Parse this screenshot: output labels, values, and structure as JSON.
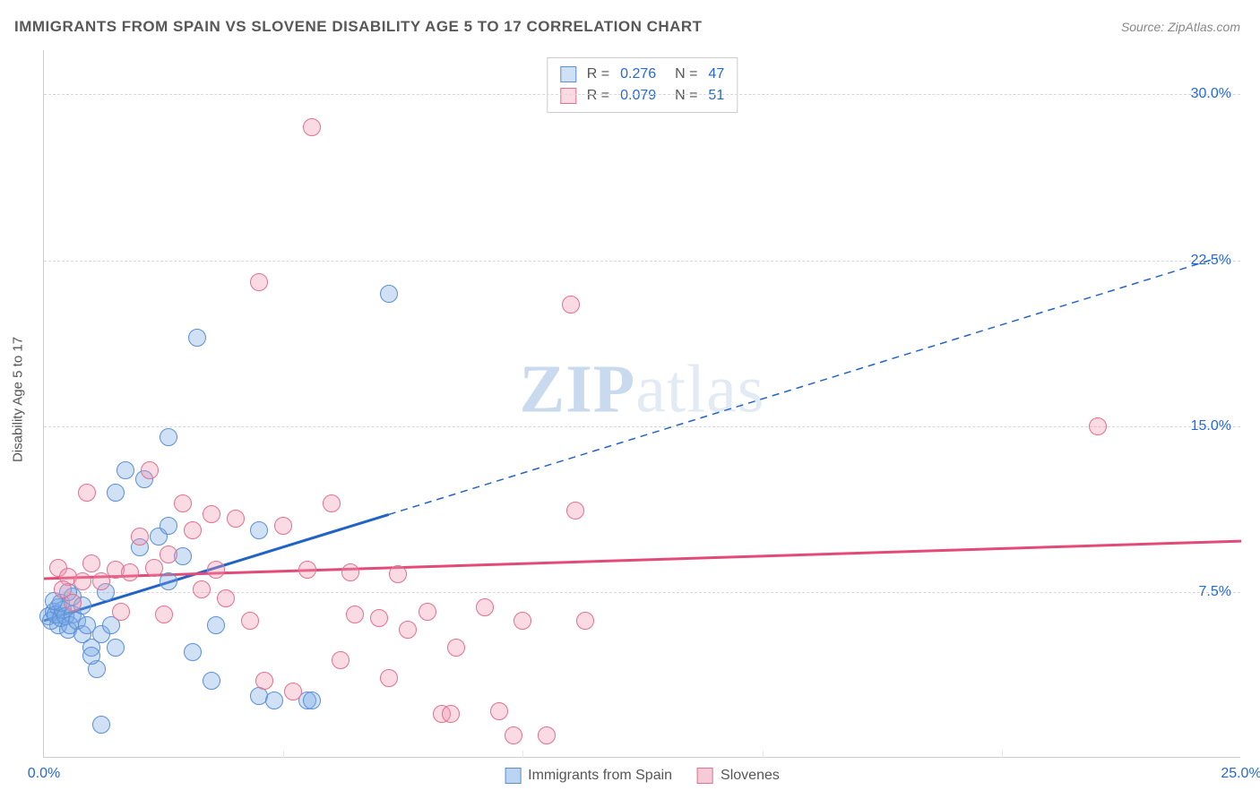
{
  "title": "IMMIGRANTS FROM SPAIN VS SLOVENE DISABILITY AGE 5 TO 17 CORRELATION CHART",
  "source_label": "Source: ZipAtlas.com",
  "ylabel": "Disability Age 5 to 17",
  "watermark_a": "ZIP",
  "watermark_b": "atlas",
  "chart": {
    "type": "scatter",
    "xlim": [
      0,
      25
    ],
    "ylim": [
      0,
      32
    ],
    "xticks": [
      {
        "v": 0,
        "label": "0.0%"
      },
      {
        "v": 25,
        "label": "25.0%"
      }
    ],
    "xtick_marks": [
      5,
      10,
      15,
      20
    ],
    "yticks": [
      {
        "v": 7.5,
        "label": "7.5%"
      },
      {
        "v": 15,
        "label": "15.0%"
      },
      {
        "v": 22.5,
        "label": "22.5%"
      },
      {
        "v": 30,
        "label": "30.0%"
      }
    ],
    "grid_color": "#d8d8d8",
    "background_color": "#ffffff",
    "marker_radius": 10,
    "series": [
      {
        "name": "Immigrants from Spain",
        "fill": "rgba(120,170,230,0.35)",
        "stroke": "#5a8fd6",
        "R": "0.276",
        "N": "47",
        "trend": {
          "x1": 0,
          "y1": 6.2,
          "x2": 7.2,
          "y2": 11.0,
          "x2_ext": 24.5,
          "y2_ext": 22.6,
          "color": "#2263c8",
          "width": 3
        },
        "points": [
          [
            0.1,
            6.4
          ],
          [
            0.2,
            6.6
          ],
          [
            0.3,
            6.0
          ],
          [
            0.3,
            6.8
          ],
          [
            0.15,
            6.2
          ],
          [
            0.25,
            6.5
          ],
          [
            0.35,
            6.3
          ],
          [
            0.4,
            6.7
          ],
          [
            0.35,
            7.0
          ],
          [
            0.2,
            7.1
          ],
          [
            0.5,
            5.8
          ],
          [
            0.45,
            6.4
          ],
          [
            0.6,
            6.5
          ],
          [
            0.55,
            6.0
          ],
          [
            0.6,
            7.3
          ],
          [
            0.7,
            6.2
          ],
          [
            0.8,
            5.6
          ],
          [
            0.8,
            6.9
          ],
          [
            0.9,
            6.0
          ],
          [
            0.5,
            7.5
          ],
          [
            1.0,
            5.0
          ],
          [
            1.1,
            4.0
          ],
          [
            1.0,
            4.6
          ],
          [
            1.2,
            5.6
          ],
          [
            1.3,
            7.5
          ],
          [
            1.5,
            5.0
          ],
          [
            1.4,
            6.0
          ],
          [
            1.5,
            12.0
          ],
          [
            1.7,
            13.0
          ],
          [
            1.2,
            1.5
          ],
          [
            2.0,
            9.5
          ],
          [
            2.1,
            12.6
          ],
          [
            2.4,
            10.0
          ],
          [
            2.6,
            10.5
          ],
          [
            2.6,
            8.0
          ],
          [
            2.6,
            14.5
          ],
          [
            2.9,
            9.1
          ],
          [
            3.1,
            4.8
          ],
          [
            3.2,
            19.0
          ],
          [
            3.5,
            3.5
          ],
          [
            3.6,
            6.0
          ],
          [
            4.5,
            2.8
          ],
          [
            4.8,
            2.6
          ],
          [
            5.5,
            2.6
          ],
          [
            5.6,
            2.6
          ],
          [
            7.2,
            21.0
          ],
          [
            4.5,
            10.3
          ]
        ]
      },
      {
        "name": "Slovenes",
        "fill": "rgba(240,150,175,0.35)",
        "stroke": "#e3708f",
        "R": "0.079",
        "N": "51",
        "trend": {
          "x1": 0,
          "y1": 8.1,
          "x2": 25,
          "y2": 9.8,
          "color": "#e24a78",
          "width": 3
        },
        "points": [
          [
            0.3,
            8.6
          ],
          [
            0.5,
            8.2
          ],
          [
            0.8,
            8.0
          ],
          [
            0.6,
            7.0
          ],
          [
            0.4,
            7.6
          ],
          [
            0.9,
            12.0
          ],
          [
            1.0,
            8.8
          ],
          [
            1.2,
            8.0
          ],
          [
            1.5,
            8.5
          ],
          [
            1.6,
            6.6
          ],
          [
            1.8,
            8.4
          ],
          [
            2.0,
            10.0
          ],
          [
            2.2,
            13.0
          ],
          [
            2.3,
            8.6
          ],
          [
            2.5,
            6.5
          ],
          [
            2.6,
            9.2
          ],
          [
            2.9,
            11.5
          ],
          [
            3.1,
            10.3
          ],
          [
            3.3,
            7.6
          ],
          [
            3.5,
            11.0
          ],
          [
            3.6,
            8.5
          ],
          [
            3.8,
            7.2
          ],
          [
            4.0,
            10.8
          ],
          [
            4.3,
            6.2
          ],
          [
            4.5,
            21.5
          ],
          [
            4.6,
            3.5
          ],
          [
            5.0,
            10.5
          ],
          [
            5.2,
            3.0
          ],
          [
            5.5,
            8.5
          ],
          [
            5.6,
            28.5
          ],
          [
            6.0,
            11.5
          ],
          [
            6.2,
            4.4
          ],
          [
            6.4,
            8.4
          ],
          [
            6.5,
            6.5
          ],
          [
            7.0,
            6.3
          ],
          [
            7.2,
            3.6
          ],
          [
            7.4,
            8.3
          ],
          [
            7.6,
            5.8
          ],
          [
            8.0,
            6.6
          ],
          [
            8.3,
            2.0
          ],
          [
            8.5,
            2.0
          ],
          [
            8.6,
            5.0
          ],
          [
            9.2,
            6.8
          ],
          [
            9.5,
            2.1
          ],
          [
            10.0,
            6.2
          ],
          [
            10.5,
            1.0
          ],
          [
            11.0,
            20.5
          ],
          [
            11.1,
            11.2
          ],
          [
            11.3,
            6.2
          ],
          [
            22.0,
            15.0
          ],
          [
            9.8,
            1.0
          ]
        ]
      }
    ]
  },
  "legend_bottom": [
    {
      "label": "Immigrants from Spain",
      "fill": "rgba(120,170,230,0.5)",
      "stroke": "#5a8fd6"
    },
    {
      "label": "Slovenes",
      "fill": "rgba(240,150,175,0.5)",
      "stroke": "#e3708f"
    }
  ]
}
